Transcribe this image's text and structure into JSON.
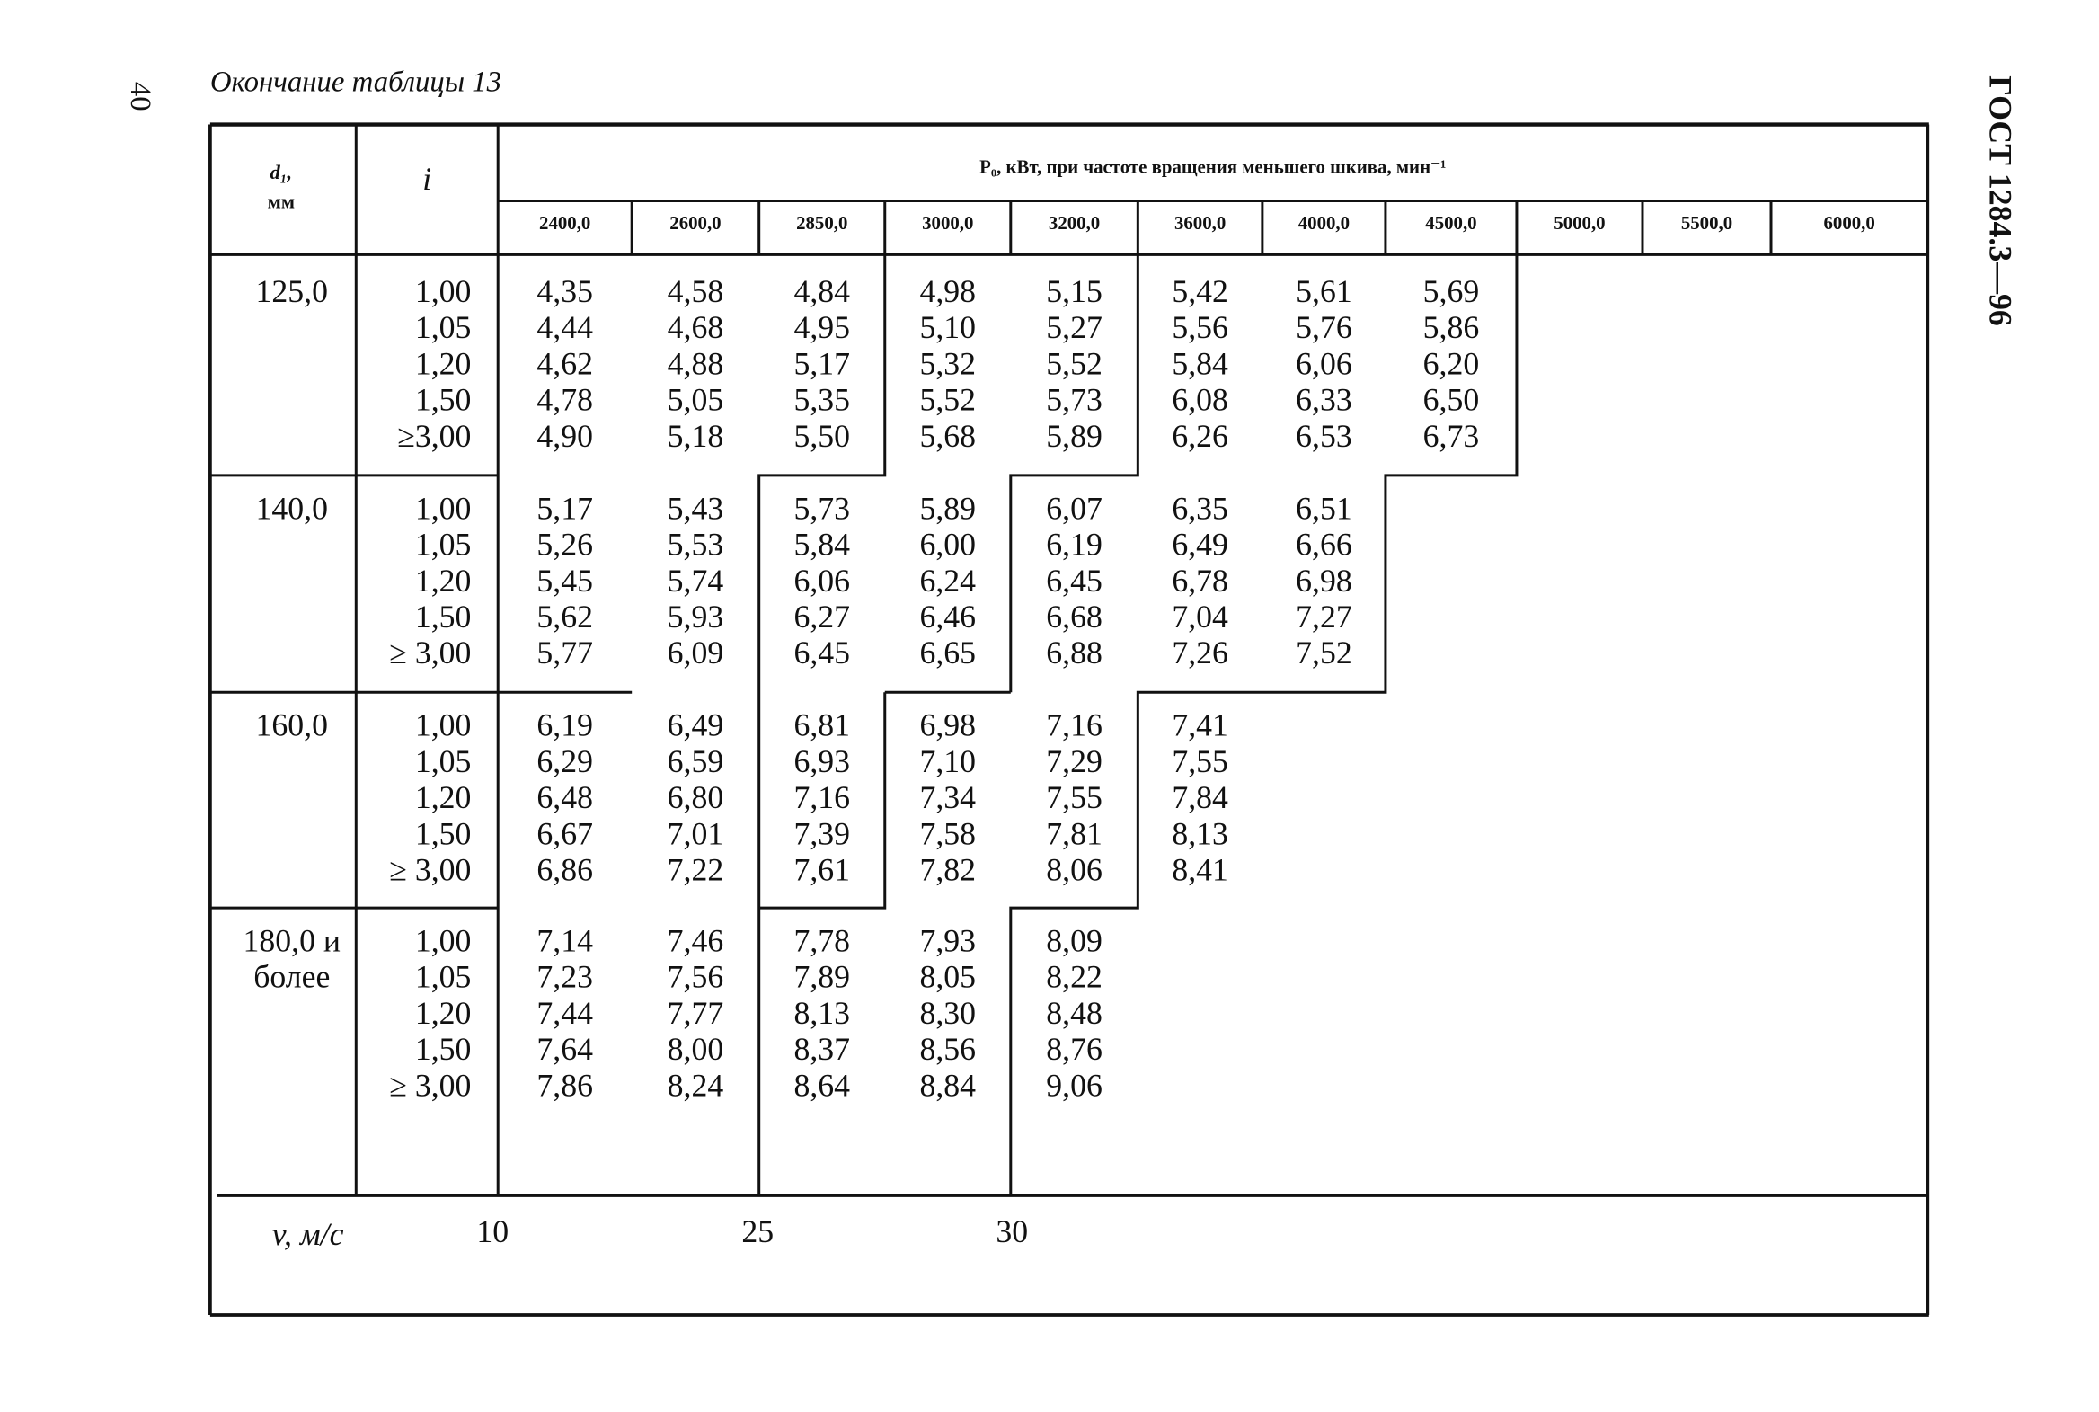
{
  "page_number": "40",
  "title": "Окончание таблицы 13",
  "side_label": "ГОСТ 1284.3—96",
  "table": {
    "header": {
      "d": "d₁,",
      "d_unit": "мм",
      "i": "i",
      "p_title": "P₀, кВт, при частоте вращения меньшего шкива, мин⁻¹",
      "speeds": [
        "2400,0",
        "2600,0",
        "2850,0",
        "3000,0",
        "3200,0",
        "3600,0",
        "4000,0",
        "4500,0",
        "5000,0",
        "5500,0",
        "6000,0"
      ]
    },
    "groups": [
      {
        "d": "125,0",
        "i": [
          "1,00",
          "1,05",
          "1,20",
          "1,50",
          "≥3,00"
        ],
        "rows": [
          [
            "4,35",
            "4,58",
            "4,84",
            "4,98",
            "5,15",
            "5,42",
            "5,61",
            "5,69"
          ],
          [
            "4,44",
            "4,68",
            "4,95",
            "5,10",
            "5,27",
            "5,56",
            "5,76",
            "5,86"
          ],
          [
            "4,62",
            "4,88",
            "5,17",
            "5,32",
            "5,52",
            "5,84",
            "6,06",
            "6,20"
          ],
          [
            "4,78",
            "5,05",
            "5,35",
            "5,52",
            "5,73",
            "6,08",
            "6,33",
            "6,50"
          ],
          [
            "4,90",
            "5,18",
            "5,50",
            "5,68",
            "5,89",
            "6,26",
            "6,53",
            "6,73"
          ]
        ]
      },
      {
        "d": "140,0",
        "i": [
          "1,00",
          "1,05",
          "1,20",
          "1,50",
          "≥ 3,00"
        ],
        "rows": [
          [
            "5,17",
            "5,43",
            "5,73",
            "5,89",
            "6,07",
            "6,35",
            "6,51"
          ],
          [
            "5,26",
            "5,53",
            "5,84",
            "6,00",
            "6,19",
            "6,49",
            "6,66"
          ],
          [
            "5,45",
            "5,74",
            "6,06",
            "6,24",
            "6,45",
            "6,78",
            "6,98"
          ],
          [
            "5,62",
            "5,93",
            "6,27",
            "6,46",
            "6,68",
            "7,04",
            "7,27"
          ],
          [
            "5,77",
            "6,09",
            "6,45",
            "6,65",
            "6,88",
            "7,26",
            "7,52"
          ]
        ]
      },
      {
        "d": "160,0",
        "i": [
          "1,00",
          "1,05",
          "1,20",
          "1,50",
          "≥ 3,00"
        ],
        "rows": [
          [
            "6,19",
            "6,49",
            "6,81",
            "6,98",
            "7,16",
            "7,41"
          ],
          [
            "6,29",
            "6,59",
            "6,93",
            "7,10",
            "7,29",
            "7,55"
          ],
          [
            "6,48",
            "6,80",
            "7,16",
            "7,34",
            "7,55",
            "7,84"
          ],
          [
            "6,67",
            "7,01",
            "7,39",
            "7,58",
            "7,81",
            "8,13"
          ],
          [
            "6,86",
            "7,22",
            "7,61",
            "7,82",
            "8,06",
            "8,41"
          ]
        ]
      },
      {
        "d": "180,0 и более",
        "i": [
          "1,00",
          "1,05",
          "1,20",
          "1,50",
          "≥ 3,00"
        ],
        "rows": [
          [
            "7,14",
            "7,46",
            "7,78",
            "7,93",
            "8,09"
          ],
          [
            "7,23",
            "7,56",
            "7,89",
            "8,05",
            "8,22"
          ],
          [
            "7,44",
            "7,77",
            "8,13",
            "8,30",
            "8,48"
          ],
          [
            "7,64",
            "8,00",
            "8,37",
            "8,56",
            "8,76"
          ],
          [
            "7,86",
            "8,24",
            "8,64",
            "8,84",
            "9,06"
          ]
        ]
      }
    ],
    "footer": {
      "v_label": "v,  м/с",
      "v_values": [
        "10",
        "25",
        "30"
      ]
    }
  }
}
